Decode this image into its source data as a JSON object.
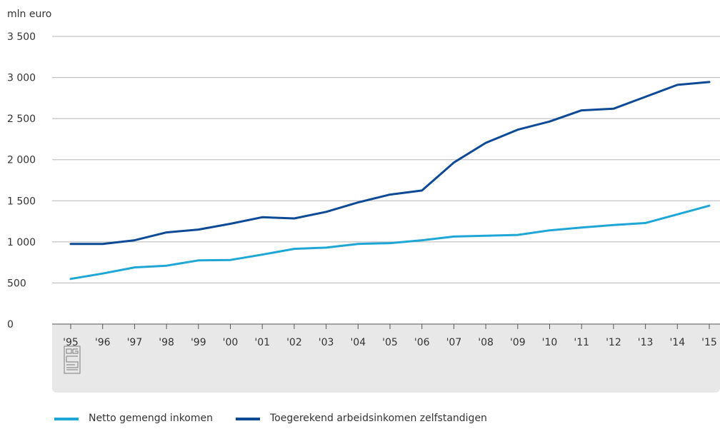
{
  "chart_data": {
    "type": "line",
    "unit_label": "mln euro",
    "categories": [
      "'95",
      "'96",
      "'97",
      "'98",
      "'99",
      "'00",
      "'01",
      "'02",
      "'03",
      "'04",
      "'05",
      "'06",
      "'07",
      "'08",
      "'09",
      "'10",
      "'11",
      "'12",
      "'13",
      "'14",
      "'15"
    ],
    "ylim": [
      0,
      3500
    ],
    "yticks": [
      0,
      500,
      1000,
      1500,
      2000,
      2500,
      3000,
      3500
    ],
    "ytick_labels": [
      "0",
      "500",
      "1 000",
      "1 500",
      "2 000",
      "2 500",
      "3 000",
      "3 500"
    ],
    "grid": true,
    "legend_position": "bottom",
    "series": [
      {
        "name": "Netto gemengd inkomen",
        "color": "#1ea7d6",
        "values": [
          550,
          615,
          690,
          710,
          775,
          780,
          845,
          915,
          930,
          975,
          985,
          1020,
          1065,
          1075,
          1085,
          1140,
          1175,
          1205,
          1230,
          1335,
          1440
        ]
      },
      {
        "name": "Toegerekend arbeidsinkomen zelfstandigen",
        "color": "#0d4a96",
        "values": [
          975,
          975,
          1020,
          1115,
          1150,
          1220,
          1300,
          1285,
          1365,
          1480,
          1575,
          1625,
          1965,
          2205,
          2365,
          2465,
          2600,
          2620,
          2765,
          2910,
          2945
        ]
      }
    ]
  },
  "footer_icon": "cbs-logo-icon"
}
